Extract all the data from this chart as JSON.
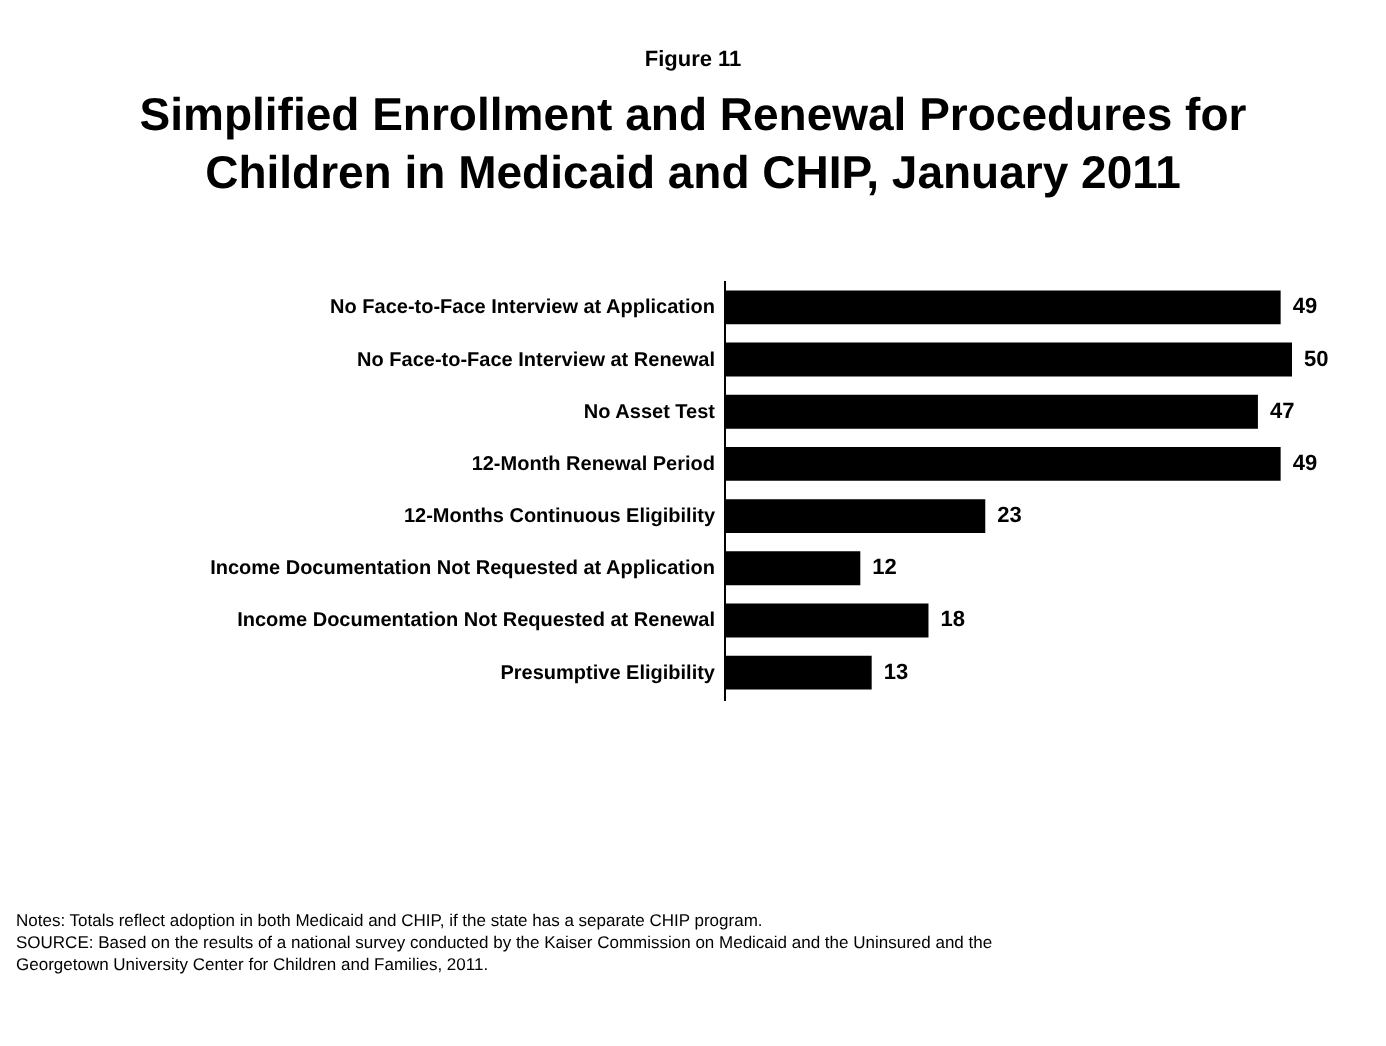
{
  "chart_data": {
    "type": "bar",
    "orientation": "horizontal",
    "title": "Simplified Enrollment and Renewal Procedures for Children in Medicaid and CHIP, January 2011",
    "categories": [
      "No Face-to-Face Interview at Application",
      "No Face-to-Face Interview at Renewal",
      "No Asset Test",
      "12-Month Renewal Period",
      "12-Months Continuous Eligibility",
      "Income Documentation Not Requested at Application",
      "Income Documentation Not Requested at Renewal",
      "Presumptive Eligibility"
    ],
    "values": [
      49,
      50,
      47,
      49,
      23,
      12,
      18,
      13
    ],
    "color": "#000000",
    "data_labels": true,
    "grid": false,
    "annotations": [
      "Figure 11",
      "Notes: Totals reflect adoption in both Medicaid and CHIP, if the state has a separate CHIP program.",
      "SOURCE: Based on the results of a national survey conducted by the Kaiser Commission on Medicaid and the Uninsured and the Georgetown University Center for Children and Families, 2011."
    ]
  }
}
